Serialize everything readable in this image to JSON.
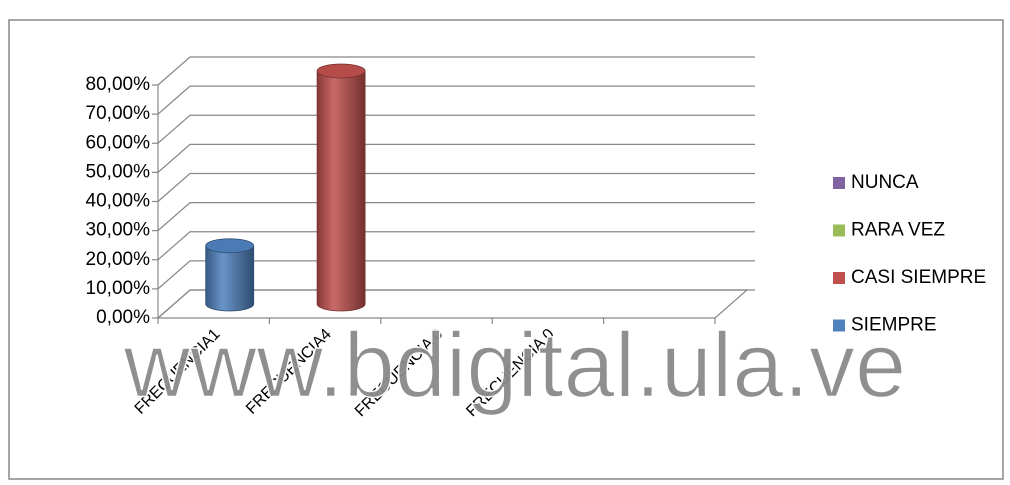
{
  "chart_data": {
    "type": "bar3d",
    "categories": [
      "FRECUENCIA1",
      "FRECUENCIA4",
      "FRECUENCIA 0",
      "FRECUENCIA 0",
      null
    ],
    "series": [
      {
        "name": "SIEMPRE",
        "color": "#4f81bd",
        "values": [
          20,
          null,
          null,
          null,
          null
        ]
      },
      {
        "name": "CASI SIEMPRE",
        "color": "#c0504d",
        "values": [
          null,
          80,
          null,
          null,
          null
        ]
      },
      {
        "name": "RARA VEZ",
        "color": "#9bbb59",
        "values": [
          null,
          null,
          null,
          null,
          null
        ]
      },
      {
        "name": "NUNCA",
        "color": "#8064a2",
        "values": [
          null,
          null,
          null,
          null,
          null
        ]
      }
    ],
    "ylim": [
      0,
      80
    ],
    "yticks": [
      {
        "value": 0,
        "label": "0,00%"
      },
      {
        "value": 10,
        "label": "10,00%"
      },
      {
        "value": 20,
        "label": "20,00%"
      },
      {
        "value": 30,
        "label": "30,00%"
      },
      {
        "value": 40,
        "label": "40,00%"
      },
      {
        "value": 50,
        "label": "50,00%"
      },
      {
        "value": 60,
        "label": "60,00%"
      },
      {
        "value": 70,
        "label": "70,00%"
      },
      {
        "value": 80,
        "label": "80,00%"
      }
    ],
    "grid": true,
    "legend": "right",
    "watermark": "www.bdigital.ula.ve"
  }
}
